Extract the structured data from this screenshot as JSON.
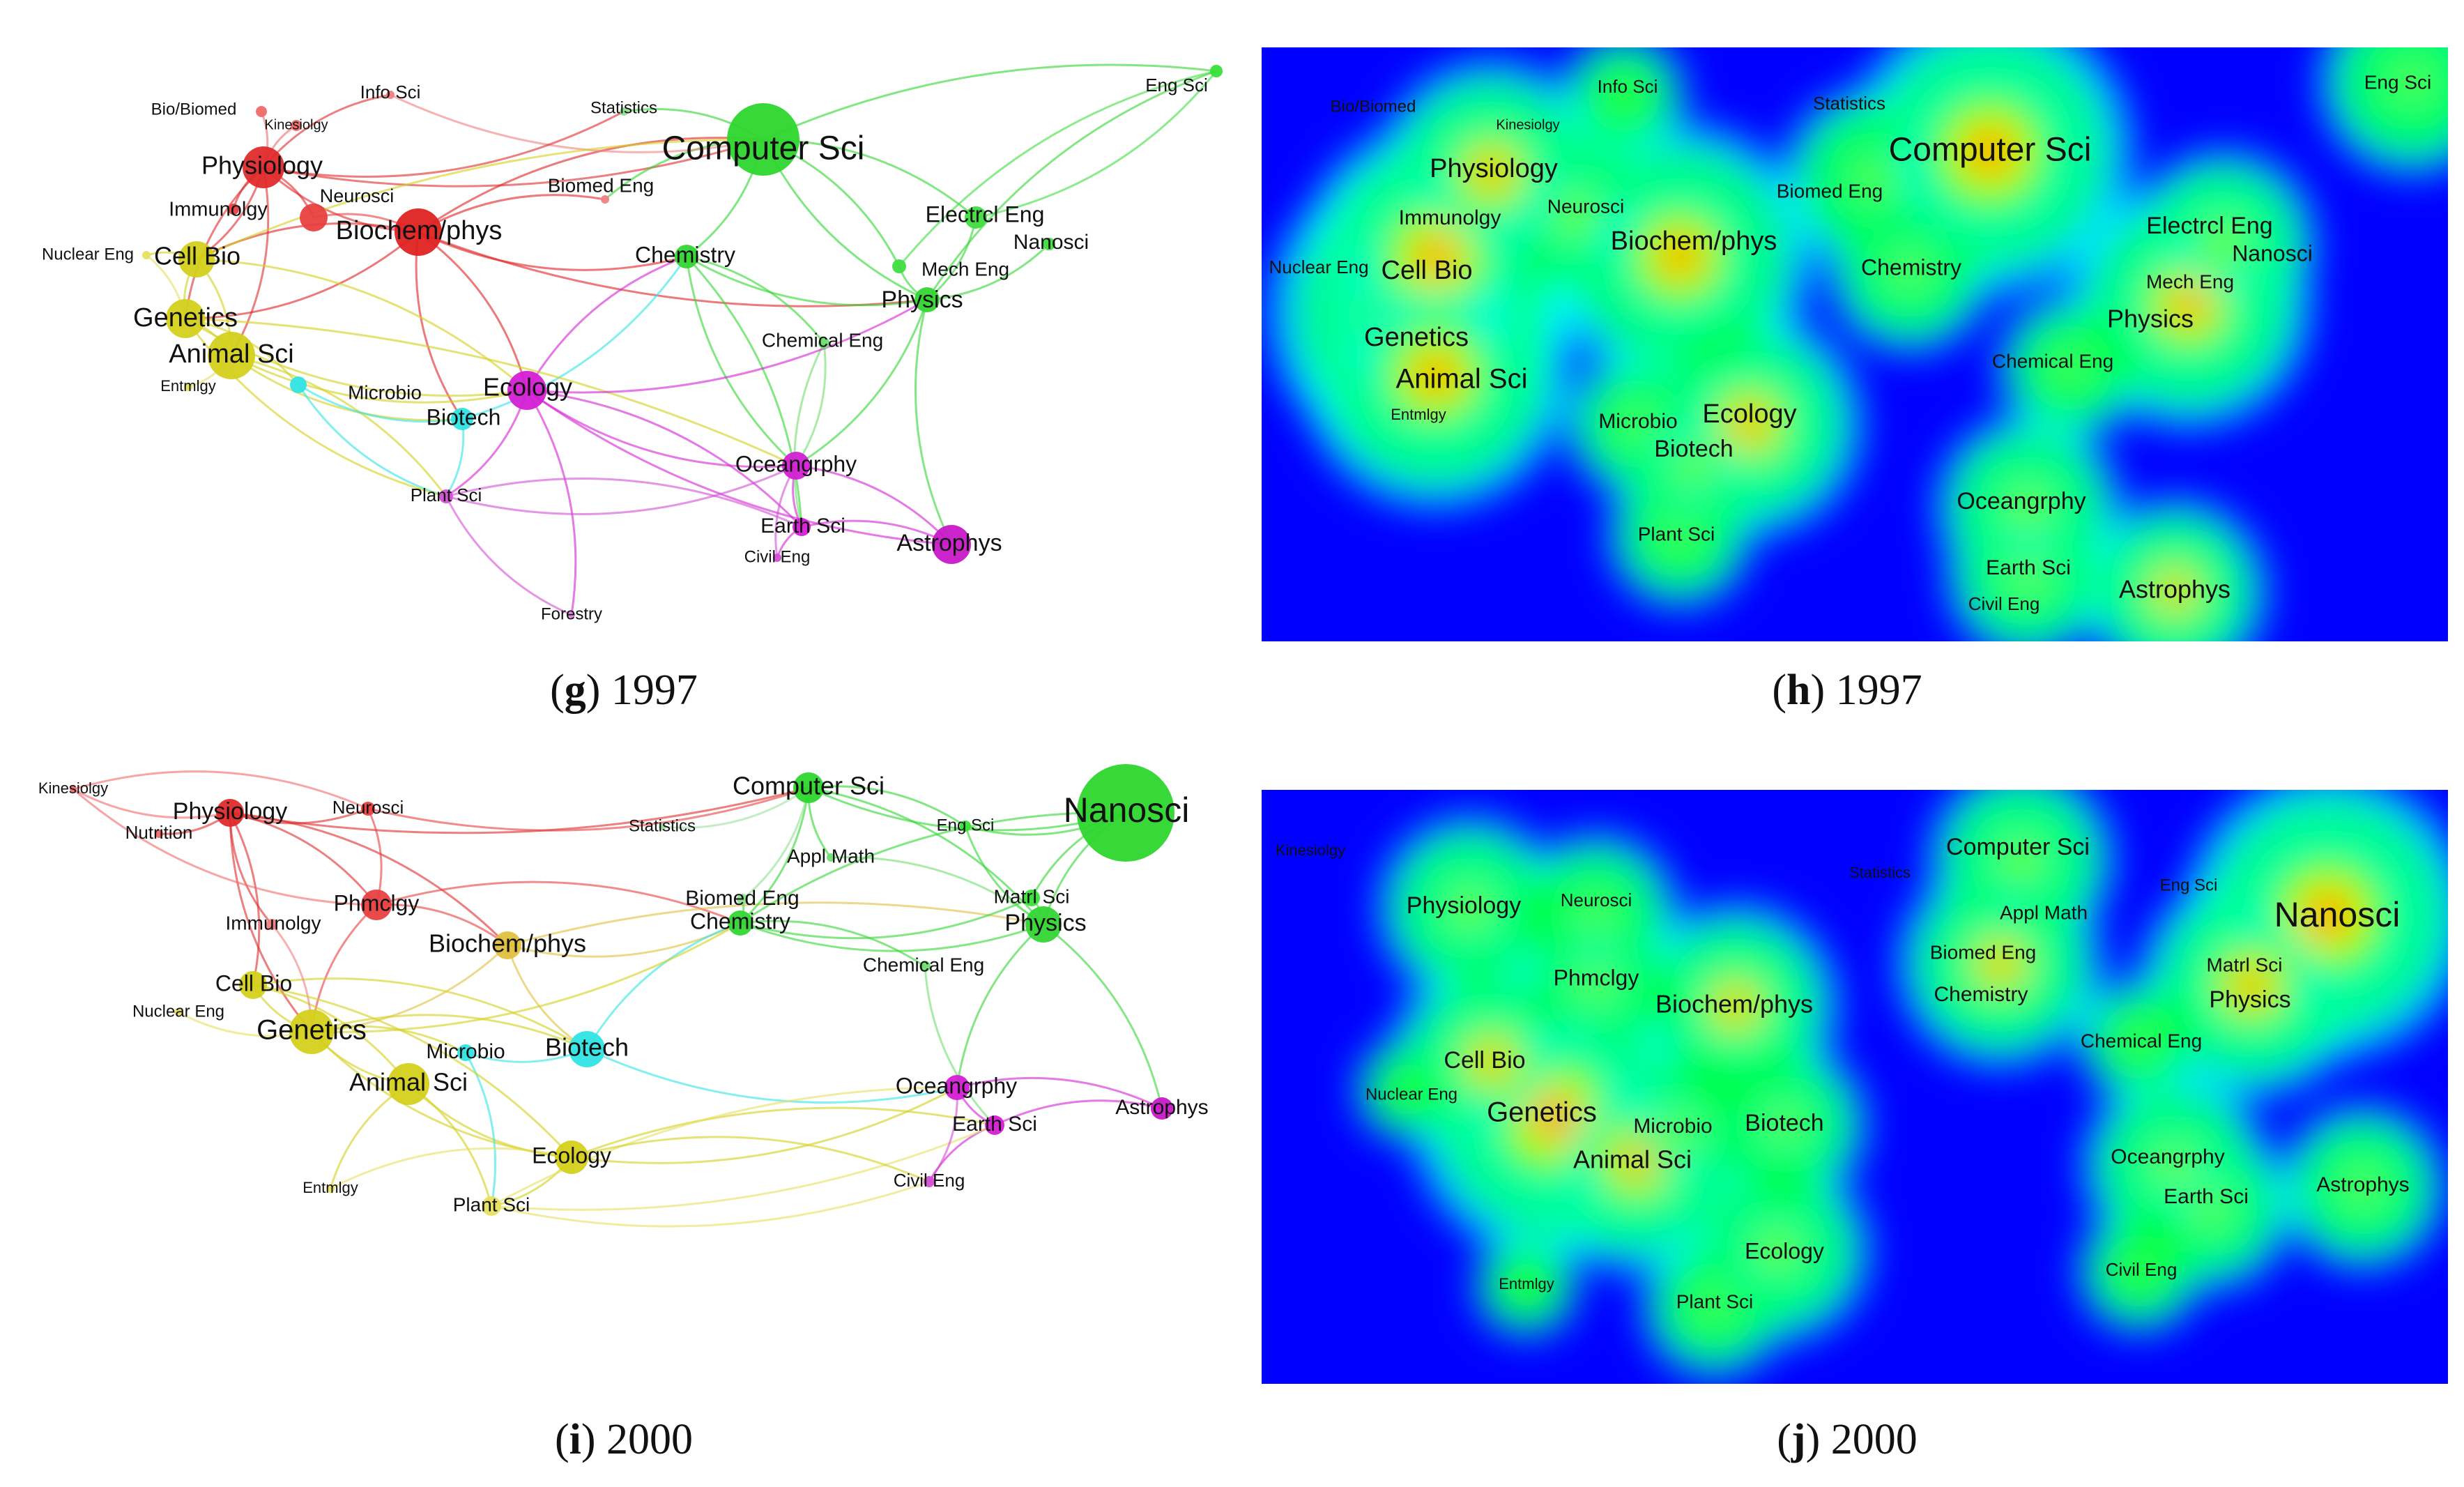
{
  "panels": [
    {
      "id": "g",
      "kind": "network",
      "caption": {
        "letter": "g",
        "year": "1997"
      },
      "nodes": [
        {
          "label": "Bio/Biomed",
          "color": "#f06a6a"
        },
        {
          "label": "Kinesiolgy",
          "color": "#f06a6a"
        },
        {
          "label": "Info Sci",
          "color": "#f08080"
        },
        {
          "label": "Statistics",
          "color": "#90e090"
        },
        {
          "label": "Eng Sci",
          "color": "#38e038"
        },
        {
          "label": "Physiology",
          "color": "#e02a2a"
        },
        {
          "label": "Computer Sci",
          "color": "#2ed62e"
        },
        {
          "label": "Immunolgy",
          "color": "#e84040"
        },
        {
          "label": "Neurosci",
          "color": "#e84040"
        },
        {
          "label": "Biomed Eng",
          "color": "#f08080"
        },
        {
          "label": "Biochem/phys",
          "color": "#e02222"
        },
        {
          "label": "Electrcl Eng",
          "color": "#40dd40"
        },
        {
          "label": "Nanosci",
          "color": "#40dd40"
        },
        {
          "label": "Nuclear Eng",
          "color": "#e6e060"
        },
        {
          "label": "Cell Bio",
          "color": "#d4d01c"
        },
        {
          "label": "Chemistry",
          "color": "#34d634"
        },
        {
          "label": "Mech Eng",
          "color": "#40dd40"
        },
        {
          "label": "Physics",
          "color": "#34d634"
        },
        {
          "label": "Genetics",
          "color": "#d4d01c"
        },
        {
          "label": "Chemical Eng",
          "color": "#70dd70"
        },
        {
          "label": "Animal Sci",
          "color": "#d4d01c"
        },
        {
          "label": "Entmlgy",
          "color": "#e6e060"
        },
        {
          "label": "Microbio",
          "color": "#30e4e4"
        },
        {
          "label": "Ecology",
          "color": "#d41fd4"
        },
        {
          "label": "Biotech",
          "color": "#30e4e4"
        },
        {
          "label": "Oceangrphy",
          "color": "#d41fd4"
        },
        {
          "label": "Plant Sci",
          "color": "#d44fd4"
        },
        {
          "label": "Earth Sci",
          "color": "#d41fd4"
        },
        {
          "label": "Civil Eng",
          "color": "#d44fd4"
        },
        {
          "label": "Astrophys",
          "color": "#c818c8"
        },
        {
          "label": "Forestry",
          "color": "#e080e0"
        }
      ]
    },
    {
      "id": "h",
      "kind": "density",
      "caption": {
        "letter": "h",
        "year": "1997"
      },
      "labels": [
        "Bio/Biomed",
        "Kinesiolgy",
        "Info Sci",
        "Statistics",
        "Eng Sci",
        "Physiology",
        "Computer Sci",
        "Immunolgy",
        "Neurosci",
        "Biomed Eng",
        "Biochem/phys",
        "Electrcl Eng",
        "Nanosci",
        "Nuclear Eng",
        "Cell Bio",
        "Chemistry",
        "Mech Eng",
        "Physics",
        "Genetics",
        "Chemical Eng",
        "Animal Sci",
        "Entmlgy",
        "Microbio",
        "Ecology",
        "Biotech",
        "Oceangrphy",
        "Plant Sci",
        "Earth Sci",
        "Civil Eng",
        "Astrophys"
      ]
    },
    {
      "id": "i",
      "kind": "network",
      "caption": {
        "letter": "i",
        "year": "2000"
      },
      "nodes": [
        {
          "label": "Kinesiolgy",
          "color": "#f06a6a"
        },
        {
          "label": "Physiology",
          "color": "#e02a2a"
        },
        {
          "label": "Neurosci",
          "color": "#e84040"
        },
        {
          "label": "Nutrition",
          "color": "#f06a6a"
        },
        {
          "label": "Statistics",
          "color": "#a0e0a0"
        },
        {
          "label": "Computer Sci",
          "color": "#2ed62e"
        },
        {
          "label": "Eng Sci",
          "color": "#38e038"
        },
        {
          "label": "Nanosci",
          "color": "#2ed62e"
        },
        {
          "label": "Appl Math",
          "color": "#70dd70"
        },
        {
          "label": "Biomed Eng",
          "color": "#90e090"
        },
        {
          "label": "Matrl Sci",
          "color": "#38e038"
        },
        {
          "label": "Immunolgy",
          "color": "#f08080"
        },
        {
          "label": "Phmclgy",
          "color": "#e84040"
        },
        {
          "label": "Chemistry",
          "color": "#34d634"
        },
        {
          "label": "Physics",
          "color": "#34d634"
        },
        {
          "label": "Biochem/phys",
          "color": "#e0c040"
        },
        {
          "label": "Cell Bio",
          "color": "#d4d01c"
        },
        {
          "label": "Chemical Eng",
          "color": "#70dd70"
        },
        {
          "label": "Nuclear Eng",
          "color": "#e6e060"
        },
        {
          "label": "Genetics",
          "color": "#d4d01c"
        },
        {
          "label": "Microbio",
          "color": "#30e4e4"
        },
        {
          "label": "Biotech",
          "color": "#30e4e4"
        },
        {
          "label": "Oceangrphy",
          "color": "#d41fd4"
        },
        {
          "label": "Animal Sci",
          "color": "#d4d01c"
        },
        {
          "label": "Astrophys",
          "color": "#c818c8"
        },
        {
          "label": "Earth Sci",
          "color": "#d41fd4"
        },
        {
          "label": "Ecology",
          "color": "#d4d01c"
        },
        {
          "label": "Civil Eng",
          "color": "#d44fd4"
        },
        {
          "label": "Entmlgy",
          "color": "#e6e060"
        },
        {
          "label": "Plant Sci",
          "color": "#e6e060"
        }
      ]
    },
    {
      "id": "j",
      "kind": "density",
      "caption": {
        "letter": "j",
        "year": "2000"
      },
      "labels": [
        "Kinesiolgy",
        "Computer Sci",
        "Statistics",
        "Physiology",
        "Neurosci",
        "Appl Math",
        "Eng Sci",
        "Nanosci",
        "Biomed Eng",
        "Matrl Sci",
        "Phmclgy",
        "Chemistry",
        "Physics",
        "Biochem/phys",
        "Chemical Eng",
        "Cell Bio",
        "Nuclear Eng",
        "Genetics",
        "Microbio",
        "Biotech",
        "Animal Sci",
        "Oceangrphy",
        "Astrophys",
        "Earth Sci",
        "Ecology",
        "Entmlgy",
        "Civil Eng",
        "Plant Sci"
      ]
    }
  ],
  "colors": {
    "density_low": "#0000ff",
    "density_mid_low": "#00ffff",
    "density_mid": "#00ff00",
    "density_mid_high": "#ffff00",
    "density_high": "#ff0000"
  }
}
